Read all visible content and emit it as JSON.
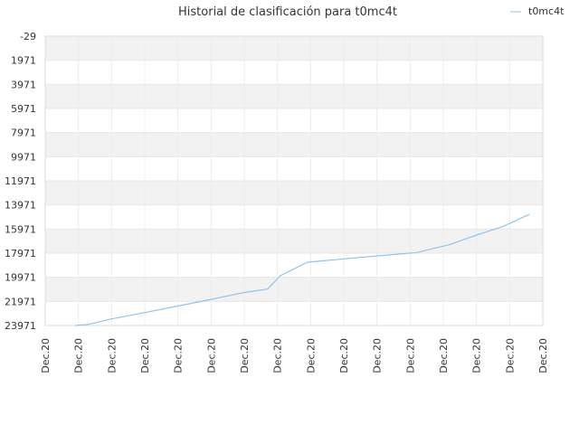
{
  "chart_data": {
    "type": "line",
    "title": "Historial de clasificación para t0mc4t",
    "xlabel": "",
    "ylabel": "",
    "legend_position": "top-right",
    "grid": true,
    "y_inverted": true,
    "ylim": [
      -29,
      23971
    ],
    "y_ticks": [
      "-29",
      "1971",
      "3971",
      "5971",
      "7971",
      "9971",
      "11971",
      "13971",
      "15971",
      "17971",
      "19971",
      "21971",
      "23971"
    ],
    "x_tick_labels": [
      "Dec.20",
      "Dec.20",
      "Dec.20",
      "Dec.20",
      "Dec.20",
      "Dec.20",
      "Dec.20",
      "Dec.20",
      "Dec.20",
      "Dec.20",
      "Dec.20",
      "Dec.20",
      "Dec.20",
      "Dec.20",
      "Dec.20",
      "Dec.20"
    ],
    "x_range": [
      0,
      15
    ],
    "series": [
      {
        "name": "t0mc4t",
        "color": "#90c4ee",
        "x": [
          0.9,
          1.3,
          2.0,
          3.0,
          4.0,
          5.0,
          6.0,
          6.7,
          7.1,
          7.9,
          8.5,
          9.5,
          10.5,
          11.2,
          12.2,
          13.0,
          13.8,
          14.6
        ],
        "y": [
          23971,
          23880,
          23420,
          22900,
          22360,
          21800,
          21230,
          20950,
          19820,
          18720,
          18570,
          18320,
          18080,
          17920,
          17250,
          16470,
          15750,
          14740
        ]
      }
    ]
  }
}
